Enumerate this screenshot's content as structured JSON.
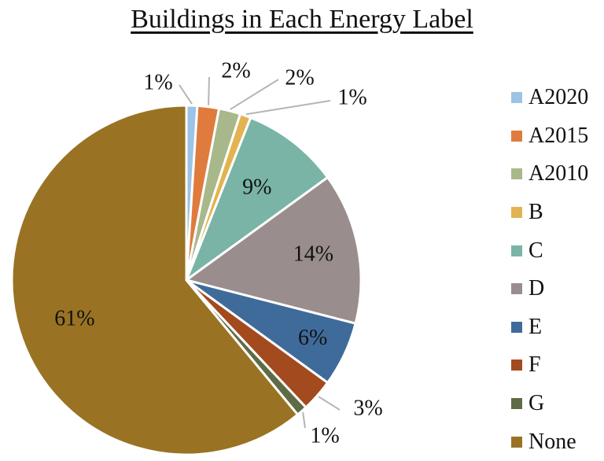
{
  "chart_data": {
    "type": "pie",
    "title": "Buildings in Each Energy Label",
    "legend_position": "right",
    "slices": [
      {
        "label": "A2020",
        "value": 1,
        "display": "1%",
        "color": "#9DC3E6"
      },
      {
        "label": "A2015",
        "value": 2,
        "display": "2%",
        "color": "#E07B3E"
      },
      {
        "label": "A2010",
        "value": 2,
        "display": "2%",
        "color": "#A9B88A"
      },
      {
        "label": "B",
        "value": 1,
        "display": "1%",
        "color": "#E2B350"
      },
      {
        "label": "C",
        "value": 9,
        "display": "9%",
        "color": "#79B4A6"
      },
      {
        "label": "D",
        "value": 14,
        "display": "14%",
        "color": "#9A8D8D"
      },
      {
        "label": "E",
        "value": 6,
        "display": "6%",
        "color": "#3F6B9A"
      },
      {
        "label": "F",
        "value": 3,
        "display": "3%",
        "color": "#A34A1E"
      },
      {
        "label": "G",
        "value": 1,
        "display": "1%",
        "color": "#5E6B45"
      },
      {
        "label": "None",
        "value": 61,
        "display": "61%",
        "color": "#997323"
      }
    ]
  }
}
